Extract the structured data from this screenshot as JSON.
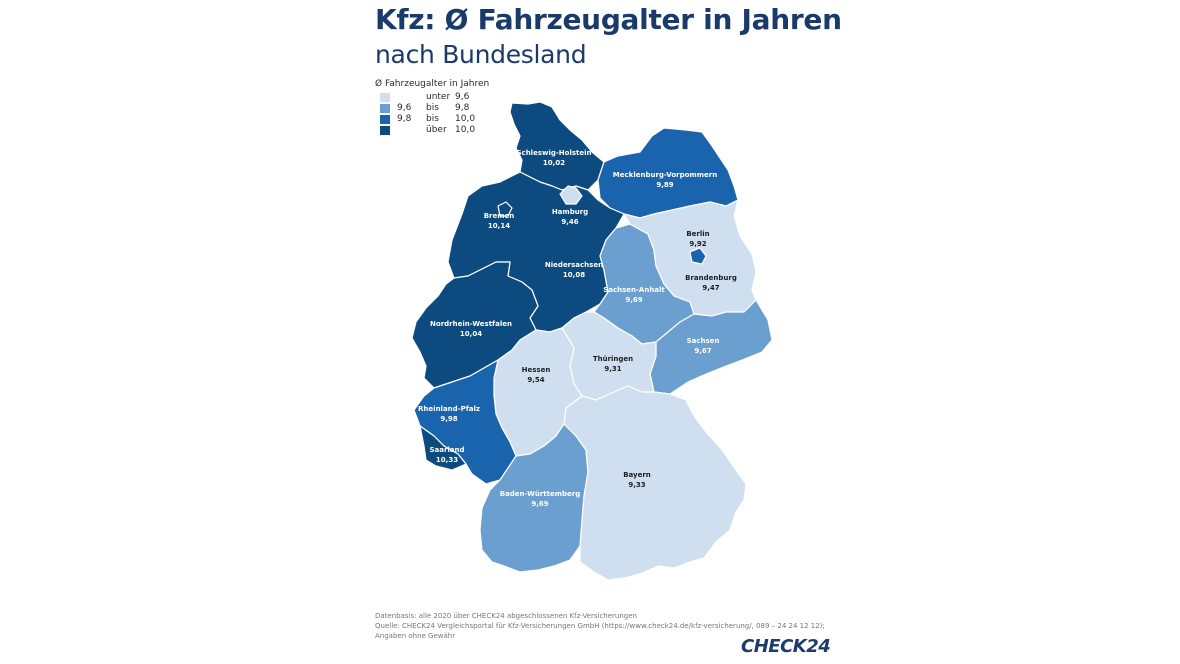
{
  "title": "Kfz: Ø Fahrzeugalter in Jahren",
  "subtitle": "nach Bundesland",
  "legend": {
    "title": "Ø Fahrzeugalter in Jahren",
    "items": [
      {
        "from": "",
        "word": "unter",
        "to": "9,6",
        "color": "#cfdff0"
      },
      {
        "from": "9,6",
        "word": "bis",
        "to": "9,8",
        "color": "#6a9fd0"
      },
      {
        "from": "9,8",
        "word": "bis",
        "to": "10,0",
        "color": "#1a64ae"
      },
      {
        "from": "",
        "word": "über",
        "to": "10,0",
        "color": "#0d4a80"
      }
    ]
  },
  "states": {
    "schleswig_holstein": {
      "name": "Schleswig-Holstein",
      "value": "10,02",
      "value_num": 10.02
    },
    "hamburg": {
      "name": "Hamburg",
      "value": "9,46",
      "value_num": 9.46
    },
    "mecklenburg_vorpommern": {
      "name": "Mecklenburg-Vorpommern",
      "value": "9,89",
      "value_num": 9.89
    },
    "bremen": {
      "name": "Bremen",
      "value": "10,14",
      "value_num": 10.14
    },
    "niedersachsen": {
      "name": "Niedersachsen",
      "value": "10,08",
      "value_num": 10.08
    },
    "berlin": {
      "name": "Berlin",
      "value": "9,92",
      "value_num": 9.92
    },
    "brandenburg": {
      "name": "Brandenburg",
      "value": "9,47",
      "value_num": 9.47
    },
    "sachsen_anhalt": {
      "name": "Sachsen-Anhalt",
      "value": "9,69",
      "value_num": 9.69
    },
    "nordrhein_westfalen": {
      "name": "Nordrhein-Westfalen",
      "value": "10,04",
      "value_num": 10.04
    },
    "sachsen": {
      "name": "Sachsen",
      "value": "9,67",
      "value_num": 9.67
    },
    "thueringen": {
      "name": "Thüringen",
      "value": "9,31",
      "value_num": 9.31
    },
    "hessen": {
      "name": "Hessen",
      "value": "9,54",
      "value_num": 9.54
    },
    "rheinland_pfalz": {
      "name": "Rheinland-Pfalz",
      "value": "9,98",
      "value_num": 9.98
    },
    "saarland": {
      "name": "Saarland",
      "value": "10,33",
      "value_num": 10.33
    },
    "bayern": {
      "name": "Bayern",
      "value": "9,33",
      "value_num": 9.33
    },
    "baden_wuerttemberg": {
      "name": "Baden-Württemberg",
      "value": "9,69",
      "value_num": 9.69
    }
  },
  "footer": {
    "line1": "Datenbasis: alle 2020 über CHECK24 abgeschlossenen Kfz-Versicherungen",
    "line2": "Quelle: CHECK24 Vergleichsportal für Kfz-Versicherungen GmbH (https://www.check24.de/kfz-versicherung/, 089 – 24 24 12 12);",
    "line3": "Angaben ohne Gewähr"
  },
  "brand": "CHECK24"
}
